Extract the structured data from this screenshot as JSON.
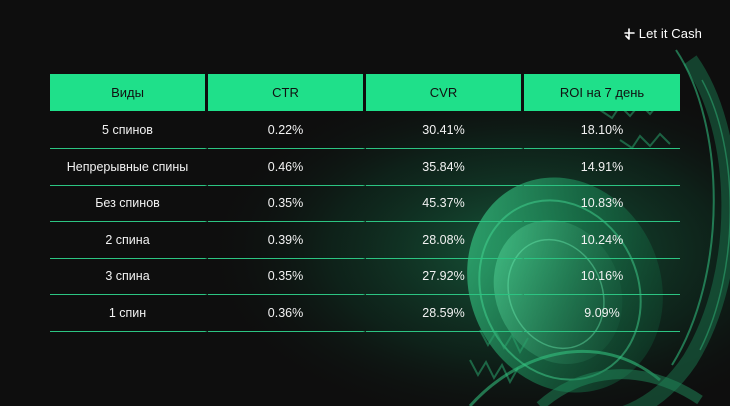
{
  "brand": {
    "name": "Let it Cash"
  },
  "table": {
    "headers": [
      "Виды",
      "CTR",
      "CVR",
      "ROI на 7 день"
    ],
    "rows": [
      [
        "5 спинов",
        "0.22%",
        "30.41%",
        "18.10%"
      ],
      [
        "Непрерывные спины",
        "0.46%",
        "35.84%",
        "14.91%"
      ],
      [
        "Без спинов",
        "0.35%",
        "45.37%",
        "10.83%"
      ],
      [
        "2 спина",
        "0.39%",
        "28.08%",
        "10.24%"
      ],
      [
        "3 спина",
        "0.35%",
        "27.92%",
        "10.16%"
      ],
      [
        "1 спин",
        "0.36%",
        "28.59%",
        "9.09%"
      ]
    ]
  },
  "colors": {
    "background": "#0e0e0e",
    "accent": "#1fe08a",
    "rule": "#2cc482",
    "text": "#f2f2f2"
  }
}
